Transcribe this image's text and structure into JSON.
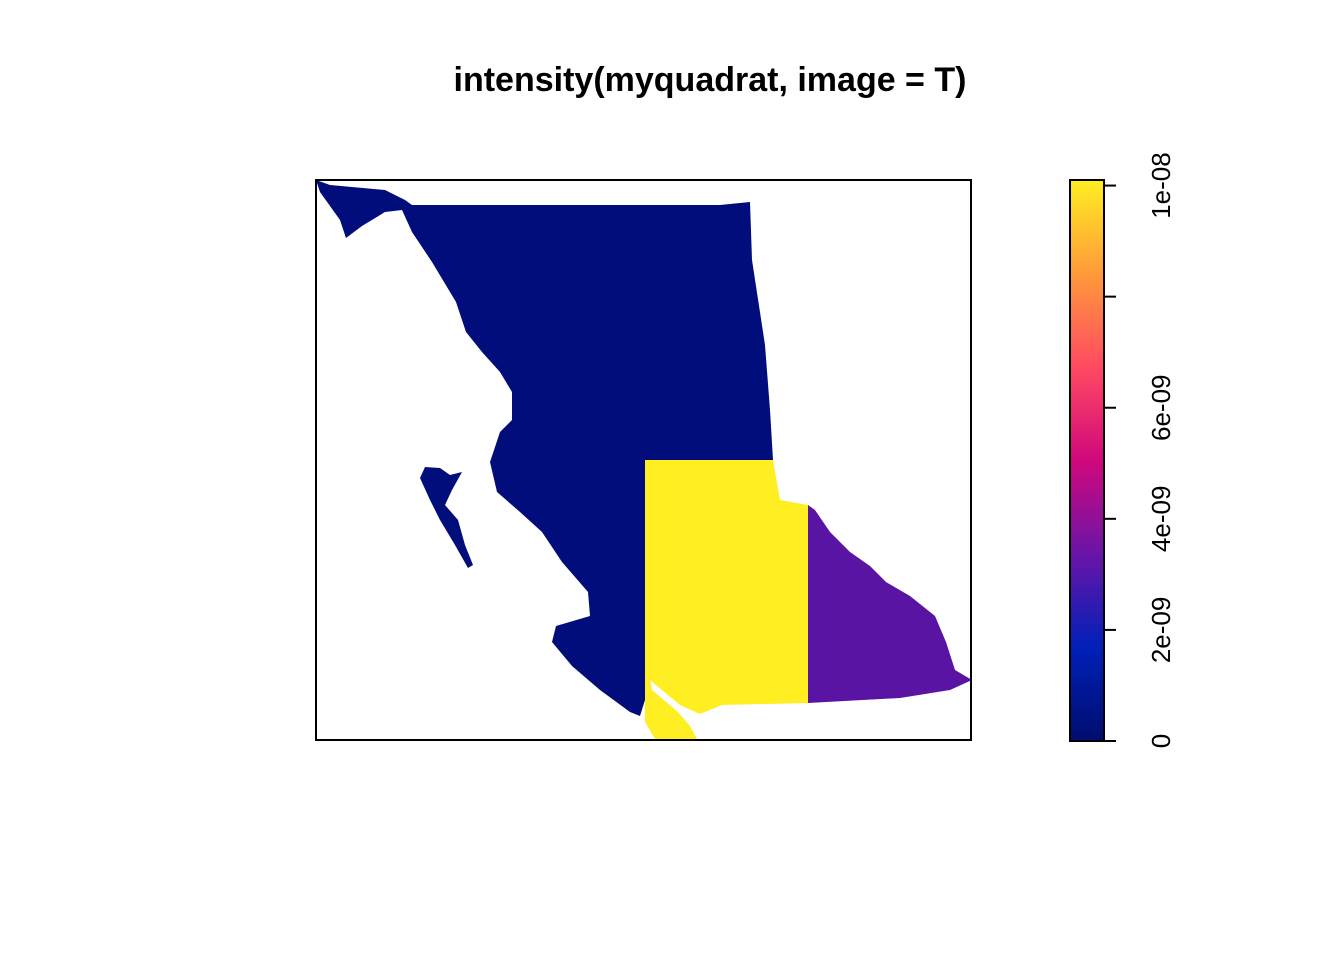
{
  "chart_data": {
    "type": "image",
    "title": "intensity(myquadrat, image = T)",
    "zlim": [
      0,
      1.01e-08
    ],
    "zticks": [
      {
        "value": 0,
        "label": "0"
      },
      {
        "value": 2e-09,
        "label": "2e-09"
      },
      {
        "value": 4e-09,
        "label": "4e-09"
      },
      {
        "value": 6e-09,
        "label": "6e-09"
      },
      {
        "value": 8e-09,
        "label": null
      },
      {
        "value": 1e-08,
        "label": "1e-08"
      }
    ],
    "colors": [
      "#000d6e",
      "#0020b8",
      "#6a14a8",
      "#d0087c",
      "#ff4a62",
      "#ff9a3a",
      "#ffee22"
    ],
    "regions": [
      {
        "value": 2e-10,
        "color": "#000d7a"
      },
      {
        "value": 1e-08,
        "color": "#ffee22"
      },
      {
        "value": 2.6e-09,
        "color": "#5a14a3"
      }
    ]
  }
}
